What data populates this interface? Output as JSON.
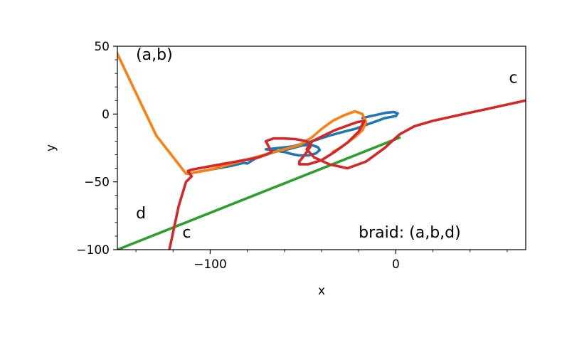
{
  "chart_data": {
    "type": "line",
    "title": "",
    "xlabel": "x",
    "ylabel": "y",
    "xlim": [
      -150,
      70
    ],
    "ylim": [
      -100,
      50
    ],
    "xticks": [
      -100,
      0
    ],
    "xtick_labels": [
      "−100",
      "0"
    ],
    "yticks": [
      50,
      0,
      -50,
      -100
    ],
    "ytick_labels": [
      "50",
      "0",
      "−50",
      "−100"
    ],
    "grid": false,
    "annotations": [
      {
        "text": "(a,b)",
        "x": -140,
        "y": 40
      },
      {
        "text": "c",
        "x": 61,
        "y": 23
      },
      {
        "text": "d",
        "x": -140,
        "y": -77
      },
      {
        "text": "c",
        "x": -115,
        "y": -91
      },
      {
        "text": "braid: (a,b,d)",
        "x": -20,
        "y": -91
      }
    ],
    "series": [
      {
        "color": "#2ca02c",
        "x": [
          -150,
          -120,
          -90,
          -60,
          -30,
          0,
          2
        ],
        "y": [
          -100,
          -83.7,
          -67.4,
          -51.1,
          -34.8,
          -18.5,
          -17.4
        ],
        "x_cont": [
          2,
          3
        ],
        "y_cont": [
          0,
          2
        ]
      },
      {
        "color": "#1f77b4",
        "x": [
          -112,
          -104,
          -96,
          -88,
          -82,
          -80,
          -76,
          -70,
          -64,
          -58,
          -54,
          -50,
          -45,
          -42,
          -41,
          -43,
          -47,
          -52,
          -56,
          -60,
          -65,
          -70,
          -56,
          -45,
          -36,
          -28,
          -22,
          -18,
          -14,
          -10,
          -6,
          -2,
          0,
          1,
          -1,
          -5,
          -10,
          -15,
          -18
        ],
        "y": [
          -44,
          -42,
          -40,
          -38,
          -36,
          -36.5,
          -33,
          -30,
          -27.5,
          -26,
          -24.5,
          -23,
          -23,
          -24.5,
          -26.5,
          -29,
          -30.5,
          -30.5,
          -29.5,
          -28,
          -27,
          -26,
          -24,
          -20,
          -16,
          -13,
          -11,
          -9,
          -7,
          -5,
          -3,
          -2,
          -1.5,
          0.5,
          1.5,
          1,
          -0.5,
          -2,
          -3
        ]
      },
      {
        "color": "#ff7f0e",
        "x": [
          -153,
          -145,
          -137,
          -129,
          -121,
          -113,
          -108,
          -100,
          -92,
          -84,
          -76,
          -68,
          -60,
          -52,
          -45,
          -40,
          -34,
          -28,
          -22,
          -18,
          -16,
          -18,
          -22,
          -26,
          -30,
          -34
        ],
        "y": [
          53,
          30,
          7,
          -16,
          -30,
          -44,
          -43,
          -41,
          -38,
          -35,
          -32,
          -29,
          -26,
          -23,
          -17,
          -11,
          -5,
          -1,
          2,
          0,
          -6,
          -12,
          -17,
          -21,
          -25,
          -28
        ]
      },
      {
        "color": "#d62728",
        "x": [
          -122,
          -117,
          -113,
          -110,
          -112,
          -110,
          -106,
          -102,
          -98,
          -94,
          -90,
          -86,
          -82,
          -78,
          -74,
          -70,
          -67,
          -70,
          -66,
          -60,
          -54,
          -48,
          -46,
          -49,
          -52,
          -52,
          -47,
          -40,
          -33,
          -26,
          -20,
          -17,
          -21,
          -25,
          -29,
          -33,
          -39,
          -45,
          -48,
          -44,
          -36,
          -26,
          -16,
          -6,
          2,
          10,
          20,
          30,
          40,
          50,
          60,
          70
        ],
        "y": [
          -100,
          -68,
          -50,
          -46,
          -42,
          -41,
          -40,
          -39,
          -38,
          -37,
          -36,
          -35,
          -34,
          -33,
          -32,
          -30,
          -28,
          -20,
          -18,
          -18,
          -18.5,
          -20,
          -24,
          -30,
          -35,
          -37,
          -37,
          -34,
          -28,
          -21,
          -13,
          -5,
          -6,
          -8,
          -10,
          -12,
          -16,
          -20,
          -26,
          -32,
          -37,
          -40,
          -35,
          -25,
          -15,
          -9,
          -5,
          -2,
          1,
          4,
          7,
          10
        ]
      }
    ]
  }
}
